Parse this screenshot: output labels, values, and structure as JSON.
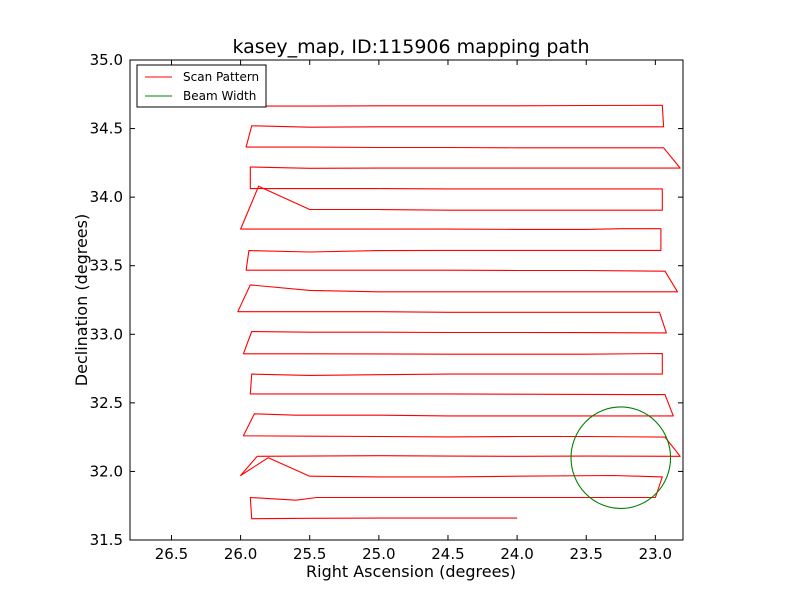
{
  "chart_data": {
    "type": "line",
    "title": "kasey_map, ID:115906 mapping path",
    "xlabel": "Right Ascension (degrees)",
    "ylabel": "Declination (degrees)",
    "xlim": [
      26.8,
      22.8
    ],
    "ylim": [
      31.5,
      35.0
    ],
    "x_inverted": true,
    "xticks": [
      "26.5",
      "26.0",
      "25.5",
      "25.0",
      "24.5",
      "24.0",
      "23.5",
      "23.0"
    ],
    "yticks": [
      "31.5",
      "32.0",
      "32.5",
      "33.0",
      "33.5",
      "34.0",
      "34.5",
      "35.0"
    ],
    "grid": false,
    "legend_position": "top-left",
    "series": [
      {
        "name": "Scan Pattern",
        "color": "#ff0000",
        "points": [
          [
            24.0,
            31.66
          ],
          [
            24.5,
            31.66
          ],
          [
            25.0,
            31.66
          ],
          [
            25.5,
            31.658
          ],
          [
            25.92,
            31.655
          ],
          [
            25.93,
            31.81
          ],
          [
            25.6,
            31.79
          ],
          [
            25.45,
            31.81
          ],
          [
            25.0,
            31.81
          ],
          [
            24.5,
            31.81
          ],
          [
            24.0,
            31.81
          ],
          [
            23.5,
            31.81
          ],
          [
            23.0,
            31.81
          ],
          [
            22.95,
            31.96
          ],
          [
            23.3,
            31.97
          ],
          [
            24.0,
            31.965
          ],
          [
            24.5,
            31.96
          ],
          [
            25.0,
            31.96
          ],
          [
            25.5,
            31.965
          ],
          [
            25.8,
            32.1
          ],
          [
            26.0,
            31.97
          ],
          [
            25.88,
            32.11
          ],
          [
            25.0,
            32.115
          ],
          [
            24.5,
            32.112
          ],
          [
            24.0,
            32.11
          ],
          [
            23.5,
            32.112
          ],
          [
            22.82,
            32.11
          ],
          [
            22.93,
            32.25
          ],
          [
            23.5,
            32.255
          ],
          [
            24.0,
            32.255
          ],
          [
            24.5,
            32.252
          ],
          [
            25.0,
            32.255
          ],
          [
            25.5,
            32.257
          ],
          [
            25.98,
            32.26
          ],
          [
            25.9,
            32.42
          ],
          [
            25.6,
            32.41
          ],
          [
            25.0,
            32.41
          ],
          [
            24.5,
            32.405
          ],
          [
            24.0,
            32.405
          ],
          [
            23.5,
            32.405
          ],
          [
            22.87,
            32.405
          ],
          [
            22.93,
            32.56
          ],
          [
            23.5,
            32.562
          ],
          [
            24.0,
            32.563
          ],
          [
            24.5,
            32.565
          ],
          [
            25.0,
            32.565
          ],
          [
            25.5,
            32.565
          ],
          [
            25.93,
            32.565
          ],
          [
            25.92,
            32.71
          ],
          [
            25.5,
            32.7
          ],
          [
            25.0,
            32.705
          ],
          [
            24.5,
            32.71
          ],
          [
            24.0,
            32.71
          ],
          [
            23.5,
            32.71
          ],
          [
            22.95,
            32.71
          ],
          [
            22.95,
            32.86
          ],
          [
            23.5,
            32.855
          ],
          [
            24.0,
            32.855
          ],
          [
            24.5,
            32.855
          ],
          [
            25.0,
            32.857
          ],
          [
            25.5,
            32.858
          ],
          [
            25.98,
            32.858
          ],
          [
            25.92,
            33.02
          ],
          [
            25.5,
            33.015
          ],
          [
            25.0,
            33.015
          ],
          [
            24.5,
            33.013
          ],
          [
            24.0,
            33.013
          ],
          [
            23.5,
            33.012
          ],
          [
            22.92,
            33.01
          ],
          [
            22.97,
            33.16
          ],
          [
            23.76,
            33.16
          ],
          [
            24.5,
            33.16
          ],
          [
            25.0,
            33.165
          ],
          [
            25.5,
            33.165
          ],
          [
            26.02,
            33.165
          ],
          [
            25.93,
            33.36
          ],
          [
            25.5,
            33.32
          ],
          [
            25.0,
            33.31
          ],
          [
            24.5,
            33.31
          ],
          [
            24.0,
            33.31
          ],
          [
            23.5,
            33.31
          ],
          [
            22.84,
            33.31
          ],
          [
            22.93,
            33.46
          ],
          [
            23.5,
            33.465
          ],
          [
            24.0,
            33.465
          ],
          [
            24.5,
            33.467
          ],
          [
            25.0,
            33.467
          ],
          [
            25.5,
            33.467
          ],
          [
            25.96,
            33.467
          ],
          [
            25.94,
            33.61
          ],
          [
            25.5,
            33.6
          ],
          [
            25.0,
            33.61
          ],
          [
            24.5,
            33.612
          ],
          [
            24.0,
            33.612
          ],
          [
            23.5,
            33.612
          ],
          [
            22.96,
            33.612
          ],
          [
            22.96,
            33.77
          ],
          [
            23.24,
            33.77
          ],
          [
            23.5,
            33.765
          ],
          [
            24.0,
            33.765
          ],
          [
            24.5,
            33.767
          ],
          [
            25.0,
            33.767
          ],
          [
            25.5,
            33.767
          ],
          [
            26.0,
            33.767
          ],
          [
            25.87,
            34.08
          ],
          [
            25.5,
            33.91
          ],
          [
            25.0,
            33.91
          ],
          [
            24.5,
            33.905
          ],
          [
            24.0,
            33.905
          ],
          [
            23.5,
            33.905
          ],
          [
            22.95,
            33.905
          ],
          [
            22.95,
            34.06
          ],
          [
            23.5,
            34.06
          ],
          [
            24.0,
            34.06
          ],
          [
            24.5,
            34.06
          ],
          [
            25.0,
            34.062
          ],
          [
            25.5,
            34.062
          ],
          [
            25.93,
            34.062
          ],
          [
            25.93,
            34.22
          ],
          [
            25.5,
            34.21
          ],
          [
            25.0,
            34.212
          ],
          [
            24.5,
            34.212
          ],
          [
            24.0,
            34.212
          ],
          [
            23.5,
            34.212
          ],
          [
            22.82,
            34.212
          ],
          [
            22.94,
            34.36
          ],
          [
            23.5,
            34.36
          ],
          [
            24.0,
            34.36
          ],
          [
            24.5,
            34.362
          ],
          [
            25.0,
            34.362
          ],
          [
            25.5,
            34.365
          ],
          [
            25.96,
            34.365
          ],
          [
            25.92,
            34.52
          ],
          [
            25.5,
            34.51
          ],
          [
            25.0,
            34.513
          ],
          [
            24.5,
            34.513
          ],
          [
            24.0,
            34.513
          ],
          [
            23.5,
            34.513
          ],
          [
            22.94,
            34.513
          ],
          [
            22.95,
            34.67
          ],
          [
            23.5,
            34.668
          ],
          [
            24.0,
            34.666
          ],
          [
            24.5,
            34.666
          ],
          [
            25.0,
            34.666
          ],
          [
            25.5,
            34.664
          ],
          [
            25.9,
            34.664
          ]
        ]
      },
      {
        "name": "Beam Width",
        "color": "#008000",
        "shape": "circle",
        "center": [
          23.25,
          32.1
        ],
        "radius_ra": 0.36,
        "radius_dec": 0.37
      }
    ]
  }
}
